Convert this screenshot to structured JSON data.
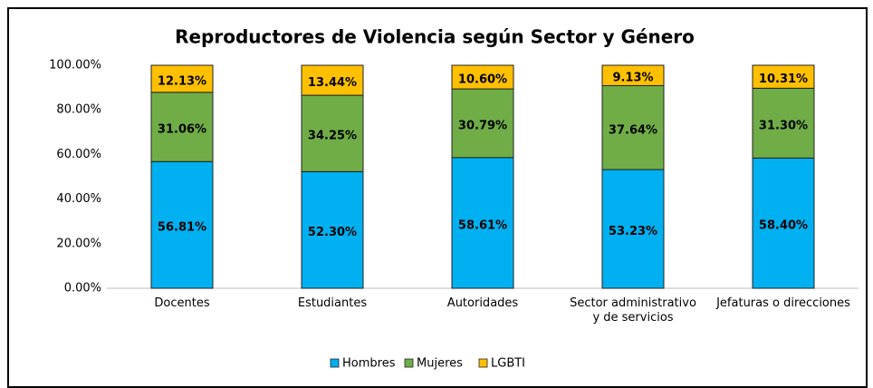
{
  "chart_data": {
    "type": "stacked_bar",
    "title": "Reproductores de Violencia según Sector y Género",
    "categories": [
      "Docentes",
      "Estudiantes",
      "Autoridades",
      "Sector administrativo y de servicios",
      "Jefaturas o direcciones"
    ],
    "series": [
      {
        "name": "Hombres",
        "color": "#00b0f0",
        "values": [
          56.81,
          52.3,
          58.61,
          53.23,
          58.4
        ],
        "value_labels": [
          "56.81%",
          "52.30%",
          "58.61%",
          "53.23%",
          "58.40%"
        ]
      },
      {
        "name": "Mujeres",
        "color": "#70ad47",
        "values": [
          31.06,
          34.25,
          30.79,
          37.64,
          31.3
        ],
        "value_labels": [
          "31.06%",
          "34.25%",
          "30.79%",
          "37.64%",
          "31.30%"
        ]
      },
      {
        "name": "LGBTI",
        "color": "#ffc000",
        "values": [
          12.13,
          13.44,
          10.6,
          9.13,
          10.31
        ],
        "value_labels": [
          "12.13%",
          "13.44%",
          "10.60%",
          "9.13%",
          "10.31%"
        ]
      }
    ],
    "ylim": [
      0,
      100
    ],
    "yticks": [
      {
        "value": 0,
        "label": "0.00%"
      },
      {
        "value": 20,
        "label": "20.00%"
      },
      {
        "value": 40,
        "label": "40.00%"
      },
      {
        "value": 60,
        "label": "60.00%"
      },
      {
        "value": 80,
        "label": "80.00%"
      },
      {
        "value": 100,
        "label": "100.00%"
      }
    ],
    "grid": false,
    "legend": "bottom"
  }
}
